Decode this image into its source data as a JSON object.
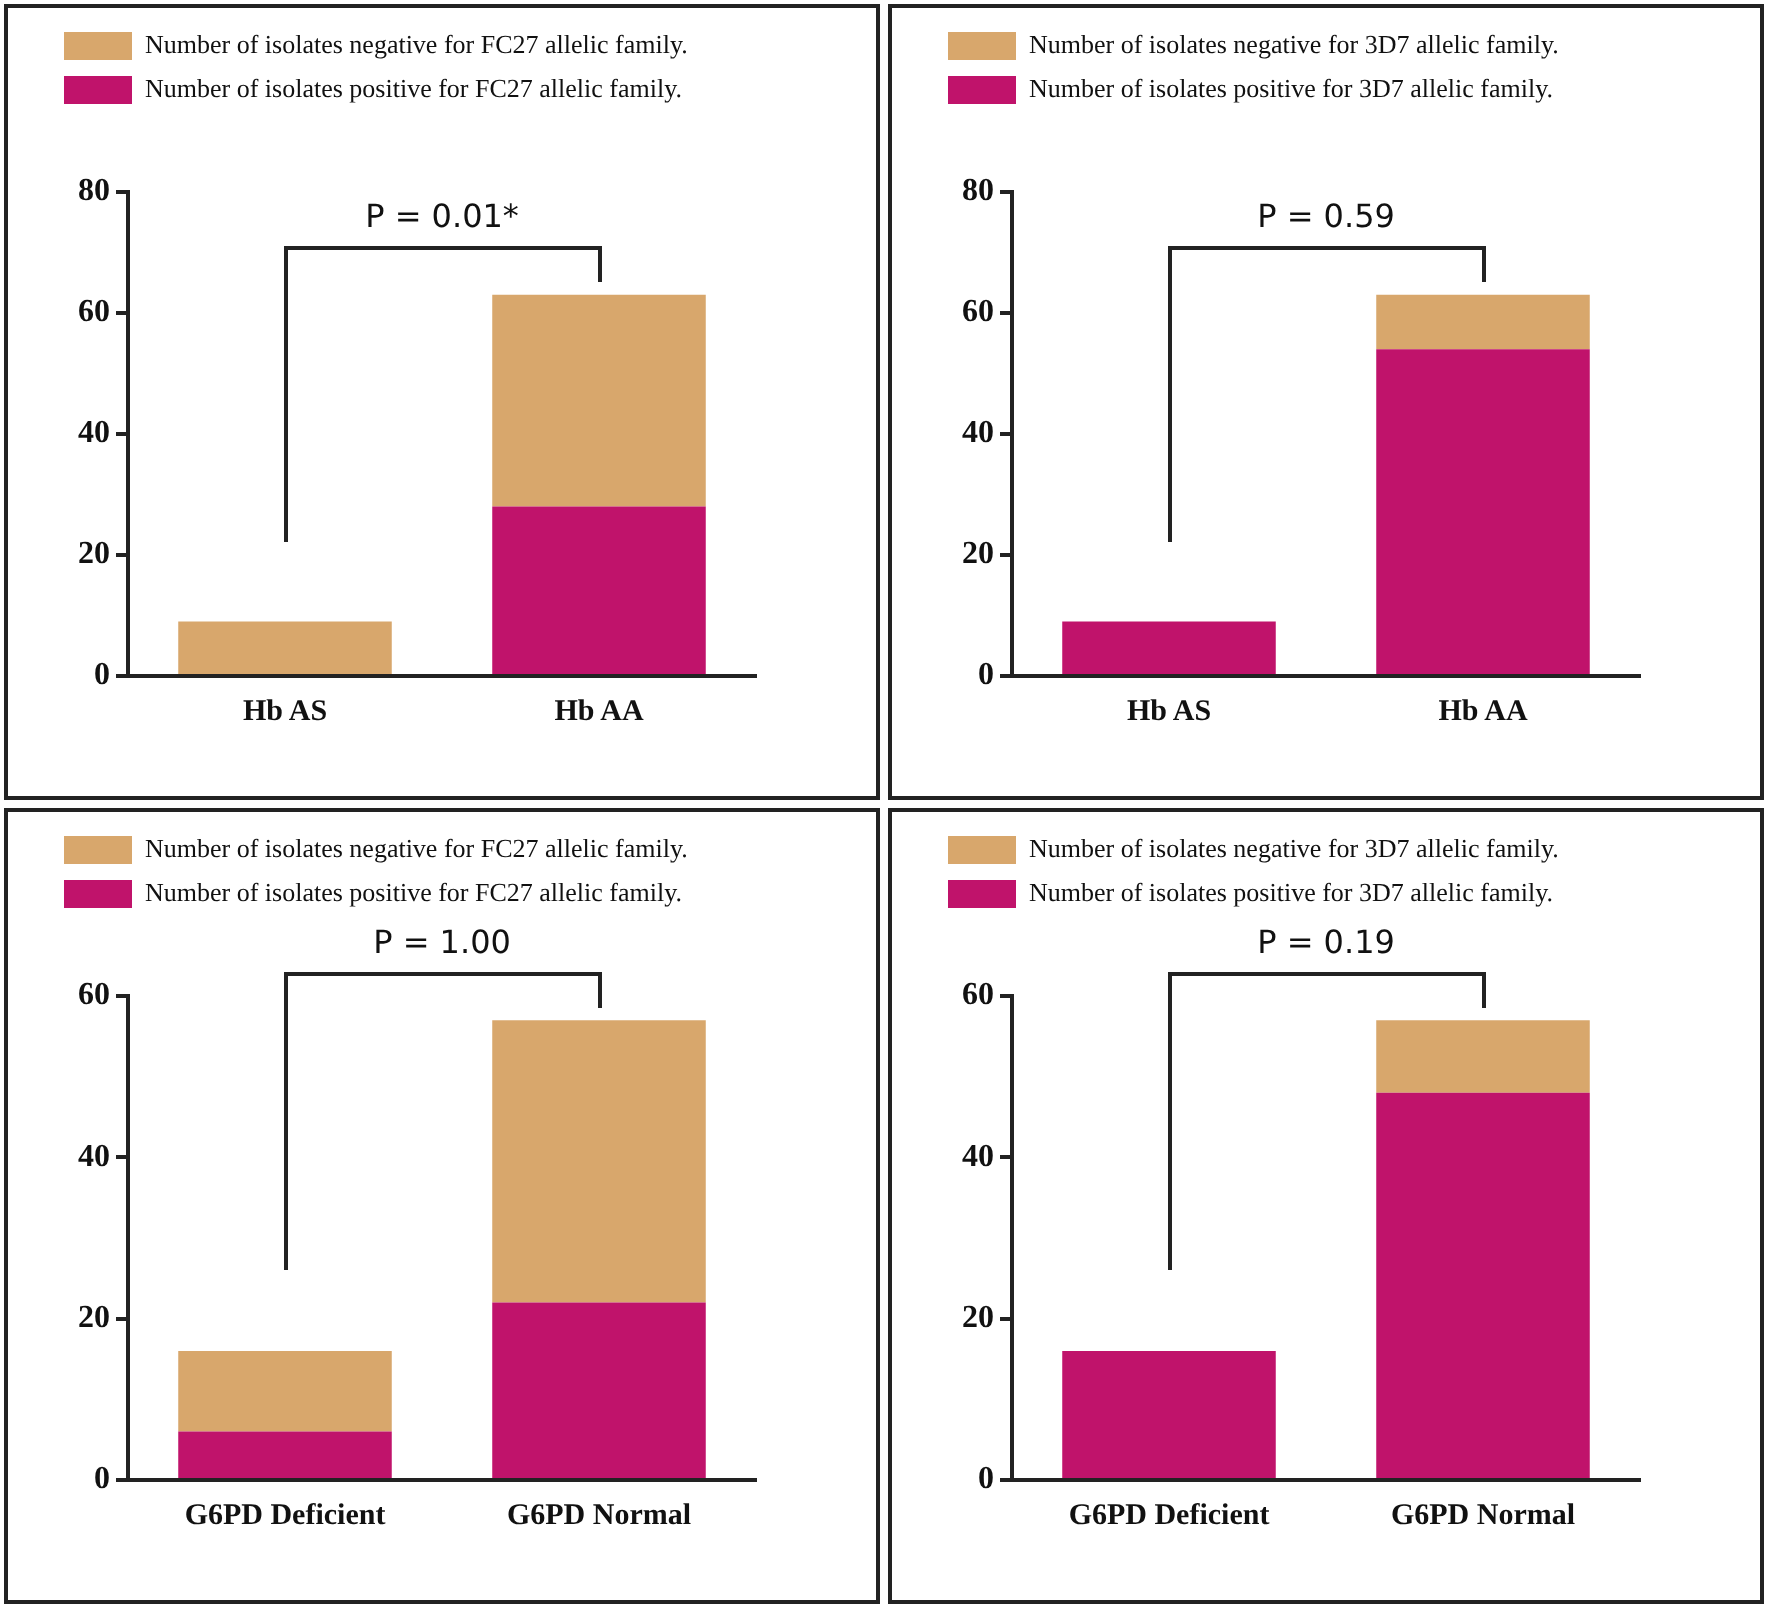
{
  "chart_data": [
    {
      "type": "bar",
      "stacked": true,
      "categories": [
        "Hb AS",
        "Hb AA"
      ],
      "series": [
        {
          "name": "Number of isolates positive for FC27 allelic family.",
          "color": "#c0136b",
          "values": [
            0,
            28
          ]
        },
        {
          "name": "Number of isolates negative for FC27 allelic family.",
          "color": "#d8a76c",
          "values": [
            9,
            35
          ]
        }
      ],
      "ylim": [
        0,
        80
      ],
      "yticks": [
        0,
        20,
        40,
        60,
        80
      ],
      "grid": false,
      "legend": "top left",
      "annotations": [
        "P = 0.01*"
      ]
    },
    {
      "type": "bar",
      "stacked": true,
      "categories": [
        "Hb AS",
        "Hb AA"
      ],
      "series": [
        {
          "name": "Number of isolates positive for 3D7 allelic family.",
          "color": "#c0136b",
          "values": [
            9,
            54
          ]
        },
        {
          "name": "Number of isolates negative for 3D7 allelic family.",
          "color": "#d8a76c",
          "values": [
            0,
            9
          ]
        }
      ],
      "ylim": [
        0,
        80
      ],
      "yticks": [
        0,
        20,
        40,
        60,
        80
      ],
      "grid": false,
      "legend": "top left",
      "annotations": [
        "P = 0.59"
      ]
    },
    {
      "type": "bar",
      "stacked": true,
      "categories": [
        "G6PD Deficient",
        "G6PD Normal"
      ],
      "series": [
        {
          "name": "Number of isolates positive for FC27 allelic family.",
          "color": "#c0136b",
          "values": [
            6,
            22
          ]
        },
        {
          "name": "Number of isolates negative for FC27 allelic family.",
          "color": "#d8a76c",
          "values": [
            10,
            35
          ]
        }
      ],
      "ylim": [
        0,
        60
      ],
      "yticks": [
        0,
        20,
        40,
        60
      ],
      "grid": false,
      "legend": "top left",
      "annotations": [
        "P = 1.00"
      ]
    },
    {
      "type": "bar",
      "stacked": true,
      "categories": [
        "G6PD Deficient",
        "G6PD Normal"
      ],
      "series": [
        {
          "name": "Number of isolates positive for 3D7 allelic family.",
          "color": "#c0136b",
          "values": [
            16,
            48
          ]
        },
        {
          "name": "Number of isolates negative for 3D7 allelic family.",
          "color": "#d8a76c",
          "values": [
            0,
            9
          ]
        }
      ],
      "ylim": [
        0,
        60
      ],
      "yticks": [
        0,
        20,
        40,
        60
      ],
      "grid": false,
      "legend": "top left",
      "annotations": [
        "P = 0.19"
      ]
    }
  ]
}
